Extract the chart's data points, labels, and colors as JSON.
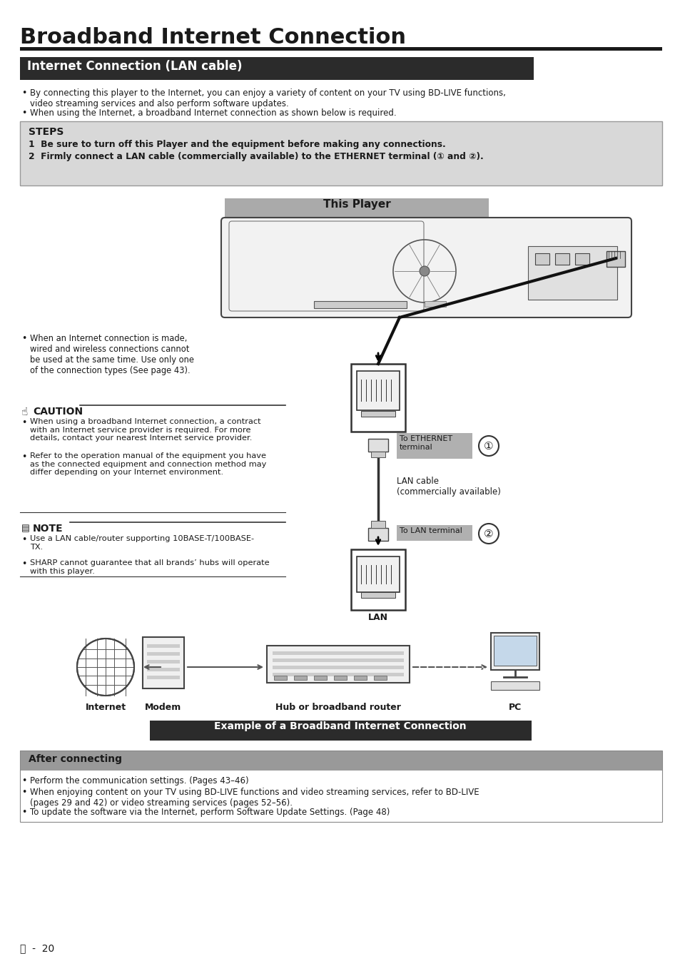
{
  "title": "Broadband Internet Connection",
  "section1_title": "Internet Connection (LAN cable)",
  "bullet1": "By connecting this player to the Internet, you can enjoy a variety of content on your TV using BD-LIVE functions,\nvideo streaming services and also perform software updates.",
  "bullet2": "When using the Internet, a broadband Internet connection as shown below is required.",
  "steps_title": "STEPS",
  "step1": "1  Be sure to turn off this Player and the equipment before making any connections.",
  "step2": "2  Firmly connect a LAN cable (commercially available) to the ETHERNET terminal (① and ②).",
  "this_player_label": "This Player",
  "side_bullet1": "When an Internet connection is made,\nwired and wireless connections cannot\nbe used at the same time. Use only one\nof the connection types (See page 43).",
  "caution_title": "CAUTION",
  "caution1": "When using a broadband Internet connection, a contract\nwith an Internet service provider is required. For more\ndetails, contact your nearest Internet service provider.",
  "caution2": "Refer to the operation manual of the equipment you have\nas the connected equipment and connection method may\ndiffer depending on your Internet environment.",
  "note_title": "NOTE",
  "note1": "Use a LAN cable/router supporting 10BASE-T/100BASE-\nTX.",
  "note2": "SHARP cannot guarantee that all brands’ hubs will operate\nwith this player.",
  "eth_label": "To ETHERNET\nterminal",
  "lan_cable_label": "LAN cable\n(commercially available)",
  "lan_terminal_label": "To LAN terminal",
  "internet_label": "Internet",
  "modem_label": "Modem",
  "hub_label": "Hub or broadband router",
  "pc_label": "PC",
  "example_label": "Example of a Broadband Internet Connection",
  "after_title": "After connecting",
  "after1": "Perform the communication settings. (Pages 43–46)",
  "after2": "When enjoying content on your TV using BD-LIVE functions and video streaming services, refer to BD-LIVE\n(pages 29 and 42) or video streaming services (pages 52–56).",
  "after3": "To update the software via the Internet, perform Software Update Settings. (Page 48)",
  "page_num": "20",
  "bg_color": "#ffffff",
  "dark_color": "#1a1a1a",
  "section_bg": "#2b2b2b",
  "section_text": "#ffffff",
  "steps_bg": "#d8d8d8",
  "gray_label_bg": "#b0b0b0",
  "after_bg": "#999999",
  "this_player_bg": "#aaaaaa"
}
